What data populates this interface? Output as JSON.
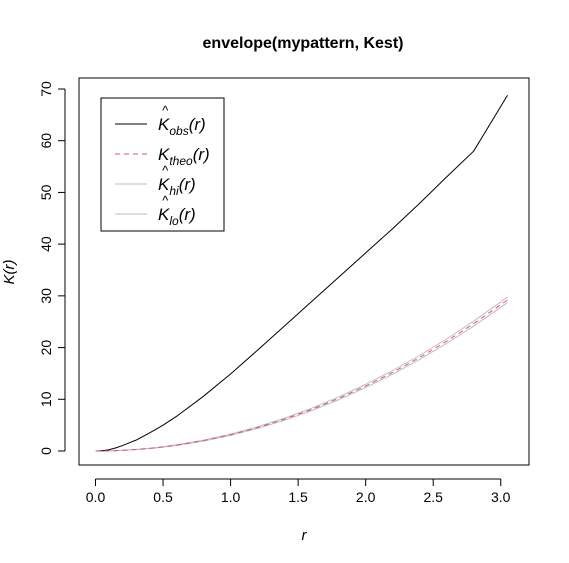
{
  "chart_data": {
    "type": "line",
    "title": "envelope(mypattern, Kest)",
    "xlabel": "r",
    "ylabel": "K(r)",
    "xlim": [
      0,
      3.05
    ],
    "ylim": [
      0,
      70
    ],
    "xticks": [
      "0.0",
      "0.5",
      "1.0",
      "1.5",
      "2.0",
      "2.5",
      "3.0"
    ],
    "yticks": [
      "0",
      "10",
      "20",
      "30",
      "40",
      "50",
      "60",
      "70"
    ],
    "grid": false,
    "legend_position": "top-left",
    "x": [
      0.0,
      0.05,
      0.1,
      0.15,
      0.2,
      0.3,
      0.4,
      0.5,
      0.6,
      0.8,
      1.0,
      1.2,
      1.4,
      1.6,
      1.8,
      2.0,
      2.2,
      2.4,
      2.6,
      2.8,
      3.05
    ],
    "series": [
      {
        "name": "K_obs(r)",
        "legend_base": "K",
        "legend_sub": "obs",
        "legend_suffix": "(r)",
        "legend_hat": true,
        "color": "#000000",
        "dash": "none",
        "width": 1,
        "values": [
          0,
          0.05,
          0.25,
          0.6,
          1.05,
          2.1,
          3.5,
          5.0,
          6.7,
          10.6,
          14.9,
          19.5,
          24.2,
          28.9,
          33.6,
          38.3,
          43.0,
          47.9,
          53.0,
          58.0,
          68.8
        ]
      },
      {
        "name": "K_theo(r)",
        "legend_base": "K",
        "legend_sub": "theo",
        "legend_suffix": "(r)",
        "legend_hat": false,
        "color": "#df536b",
        "dash": "5,4",
        "width": 1,
        "values": [
          0,
          0.008,
          0.031,
          0.071,
          0.126,
          0.283,
          0.503,
          0.785,
          1.131,
          2.011,
          3.142,
          4.524,
          6.158,
          8.042,
          10.179,
          12.566,
          15.205,
          18.096,
          21.237,
          24.63,
          29.225
        ]
      },
      {
        "name": "K_hi(r)",
        "legend_base": "K",
        "legend_sub": "hi",
        "legend_suffix": "(r)",
        "legend_hat": true,
        "color": "#bebebe",
        "dash": "none",
        "width": 1,
        "values": [
          0,
          0.01,
          0.035,
          0.08,
          0.14,
          0.31,
          0.54,
          0.84,
          1.2,
          2.11,
          3.27,
          4.69,
          6.36,
          8.28,
          10.46,
          12.88,
          15.56,
          18.49,
          21.68,
          25.12,
          29.75
        ]
      },
      {
        "name": "K_lo(r)",
        "legend_base": "K",
        "legend_sub": "lo",
        "legend_suffix": "(r)",
        "legend_hat": true,
        "color": "#bebebe",
        "dash": "none",
        "width": 1,
        "values": [
          0,
          0.006,
          0.027,
          0.063,
          0.113,
          0.26,
          0.47,
          0.74,
          1.07,
          1.92,
          3.02,
          4.37,
          5.96,
          7.81,
          9.91,
          12.26,
          14.86,
          17.71,
          20.81,
          24.16,
          28.7
        ]
      }
    ]
  }
}
